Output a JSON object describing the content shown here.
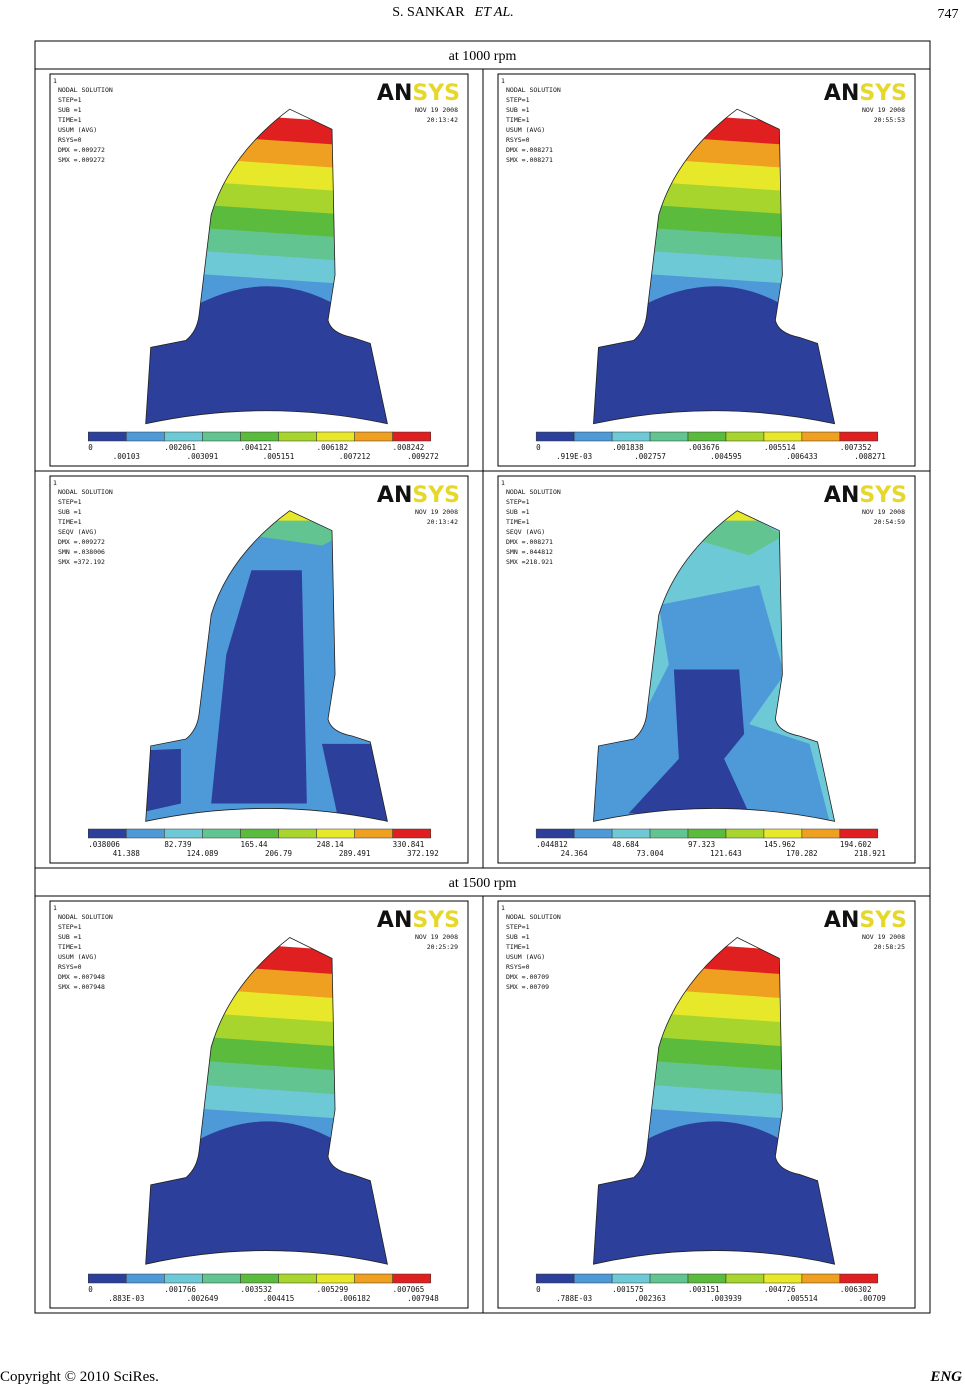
{
  "header": {
    "author": "S. SANKAR",
    "etal": "ET AL.",
    "page": "747"
  },
  "sections": [
    {
      "label": "at 1000 rpm",
      "panels": [
        {
          "marker": "1",
          "lines": [
            "NODAL SOLUTION",
            "STEP=1",
            "SUB =1",
            "TIME=1",
            "USUM    (AVG)",
            "RSYS=0",
            "DMX =.009272",
            "SMX =.009272"
          ],
          "logo_a": "AN",
          "logo_b": "SYS",
          "date": "NOV 19 2008",
          "time": "20:13:42",
          "legend_top": [
            "0",
            ".002061",
            ".004121",
            ".006182",
            ".008242"
          ],
          "legend_bottom": [
            ".00103",
            ".003091",
            ".005151",
            ".007212",
            ".009272"
          ]
        },
        {
          "marker": "1",
          "lines": [
            "NODAL SOLUTION",
            "STEP=1",
            "SUB =1",
            "TIME=1",
            "USUM    (AVG)",
            "RSYS=0",
            "DMX =.008271",
            "SMX =.008271"
          ],
          "logo_a": "AN",
          "logo_b": "SYS",
          "date": "NOV 19 2008",
          "time": "20:55:53",
          "legend_top": [
            "0",
            ".001838",
            ".003676",
            ".005514",
            ".007352"
          ],
          "legend_bottom": [
            ".919E-03",
            ".002757",
            ".004595",
            ".006433",
            ".008271"
          ]
        },
        {
          "marker": "1",
          "lines": [
            "NODAL SOLUTION",
            "STEP=1",
            "SUB =1",
            "TIME=1",
            "SEQV    (AVG)",
            "DMX =.009272",
            "SMN =.038006",
            "SMX =372.192"
          ],
          "logo_a": "AN",
          "logo_b": "SYS",
          "date": "NOV 19 2008",
          "time": "20:13:42",
          "legend_top": [
            ".038006",
            "82.739",
            "165.44",
            "248.14",
            "330.841"
          ],
          "legend_bottom": [
            "41.388",
            "124.089",
            "206.79",
            "289.491",
            "372.192"
          ]
        },
        {
          "marker": "1",
          "lines": [
            "NODAL SOLUTION",
            "STEP=1",
            "SUB =1",
            "TIME=1",
            "SEQV    (AVG)",
            "DMX =.008271",
            "SMN =.044812",
            "SMX =218.921"
          ],
          "logo_a": "AN",
          "logo_b": "SYS",
          "date": "NOV 19 2008",
          "time": "20:54:59",
          "legend_top": [
            ".044812",
            "48.684",
            "97.323",
            "145.962",
            "194.602"
          ],
          "legend_bottom": [
            "24.364",
            "73.004",
            "121.643",
            "170.282",
            "218.921"
          ]
        }
      ]
    },
    {
      "label": "at 1500 rpm",
      "panels": [
        {
          "marker": "1",
          "lines": [
            "NODAL SOLUTION",
            "STEP=1",
            "SUB =1",
            "TIME=1",
            "USUM    (AVG)",
            "RSYS=0",
            "DMX =.007948",
            "SMX =.007948"
          ],
          "logo_a": "AN",
          "logo_b": "SYS",
          "date": "NOV 19 2008",
          "time": "20:25:29",
          "legend_top": [
            "0",
            ".001766",
            ".003532",
            ".005299",
            ".007065"
          ],
          "legend_bottom": [
            ".883E-03",
            ".002649",
            ".004415",
            ".006182",
            ".007948"
          ]
        },
        {
          "marker": "1",
          "lines": [
            "NODAL SOLUTION",
            "STEP=1",
            "SUB =1",
            "TIME=1",
            "USUM    (AVG)",
            "RSYS=0",
            "DMX =.00709",
            "SMX =.00709"
          ],
          "logo_a": "AN",
          "logo_b": "SYS",
          "date": "NOV 19 2008",
          "time": "20:58:25",
          "legend_top": [
            "0",
            ".001575",
            ".003151",
            ".004726",
            ".006302"
          ],
          "legend_bottom": [
            ".788E-03",
            ".002363",
            ".003939",
            ".005514",
            ".00709"
          ]
        }
      ]
    }
  ],
  "footer": {
    "copyright": "Copyright © 2010 SciRes.",
    "journal": "ENG"
  }
}
